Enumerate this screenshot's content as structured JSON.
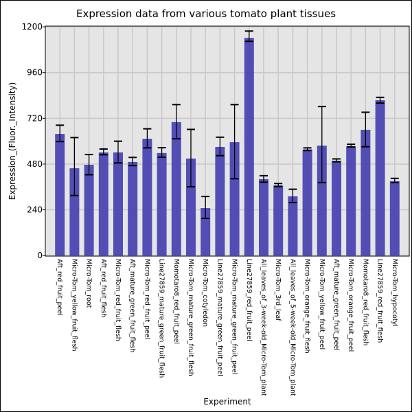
{
  "chart_data": {
    "type": "bar",
    "title": "Expression data from various tomato plant tissues",
    "xlabel": "Experiment",
    "ylabel": "Expression_(Fluor._Intensity)",
    "ylim": [
      -3,
      1204
    ],
    "yticks": [
      0,
      240,
      480,
      720,
      960,
      1200
    ],
    "grid": true,
    "bar_color": "#4b46b2",
    "background": "#e5e5e5",
    "grid_color": "#c8c8c8",
    "categories": [
      "Aft_red_fruit_peel",
      "Micro-Tom_yellow_fruit_flesh",
      "Micro-Tom_root",
      "Aft_red_fruit_flesh",
      "Micro-Tom_red_fruit_flesh",
      "Aft_mature_green_fruit_flesh",
      "Micro-Tom_red_fruit_peel",
      "Line27859_mature_green_fruit_flesh",
      "Momotaro8_red_fruit_peel",
      "Micro-Tom_mature_green_fruit_flesh",
      "Micro-Tom_cotyledon",
      "Line27859_mature_green_fruit_peel",
      "Micro-Tom_mature_green_fruit_peel",
      "Line27859_red_fruit_peel",
      "All_leaves_of_3-week-old_Micro-Tom_plant",
      "Micro-Tom_3rd_leaf",
      "All_leaves_of_5-week-old_Micro-Tom_plant",
      "Micro-Tom_orange_fruit_flesh",
      "Micro-Tom_yellow_fruit_peel",
      "Aft_mature_green_fruit_peel",
      "Micro-Tom_orange_fruit_peel",
      "Momotaro8_red_fruit_flesh",
      "Line27859_red_fruit_flesh",
      "Micro-Tom_hypocotyl"
    ],
    "values": [
      638,
      458,
      476,
      541,
      541,
      491,
      613,
      538,
      700,
      509,
      249,
      570,
      595,
      1142,
      401,
      368,
      311,
      557,
      577,
      497,
      573,
      660,
      815,
      390
    ],
    "error_upper": [
      684,
      619,
      530,
      559,
      600,
      515,
      665,
      566,
      792,
      662,
      310,
      621,
      792,
      1178,
      419,
      378,
      348,
      565,
      782,
      507,
      584,
      752,
      830,
      405
    ],
    "error_lower": [
      598,
      315,
      424,
      529,
      486,
      472,
      565,
      516,
      613,
      361,
      195,
      524,
      403,
      1124,
      385,
      362,
      278,
      551,
      383,
      492,
      570,
      571,
      800,
      383
    ]
  }
}
